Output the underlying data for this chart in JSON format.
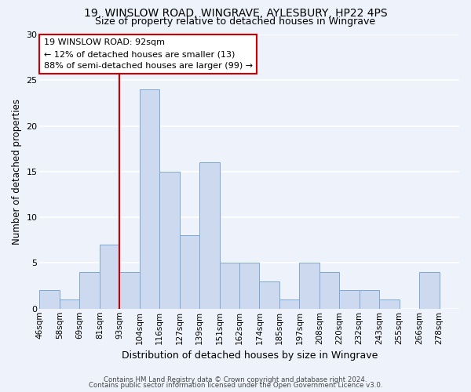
{
  "title1": "19, WINSLOW ROAD, WINGRAVE, AYLESBURY, HP22 4PS",
  "title2": "Size of property relative to detached houses in Wingrave",
  "xlabel": "Distribution of detached houses by size in Wingrave",
  "ylabel": "Number of detached properties",
  "bin_labels": [
    "46sqm",
    "58sqm",
    "69sqm",
    "81sqm",
    "93sqm",
    "104sqm",
    "116sqm",
    "127sqm",
    "139sqm",
    "151sqm",
    "162sqm",
    "174sqm",
    "185sqm",
    "197sqm",
    "208sqm",
    "220sqm",
    "232sqm",
    "243sqm",
    "255sqm",
    "266sqm",
    "278sqm"
  ],
  "bar_heights": [
    2,
    1,
    4,
    7,
    4,
    24,
    15,
    8,
    16,
    5,
    5,
    3,
    1,
    5,
    4,
    2,
    2,
    1,
    0,
    4,
    0
  ],
  "bar_color": "#ccd9ee",
  "bar_edge_color": "#7aa8d4",
  "subject_line_index": 4,
  "subject_line_color": "#cc0000",
  "annotation_text": "19 WINSLOW ROAD: 92sqm\n← 12% of detached houses are smaller (13)\n88% of semi-detached houses are larger (99) →",
  "annotation_box_edge": "#cc0000",
  "ylim": [
    0,
    30
  ],
  "yticks": [
    0,
    5,
    10,
    15,
    20,
    25,
    30
  ],
  "footer1": "Contains HM Land Registry data © Crown copyright and database right 2024.",
  "footer2": "Contains public sector information licensed under the Open Government Licence v3.0.",
  "bg_color": "#eef2fb",
  "plot_bg_color": "#eef2fb",
  "grid_color": "#ffffff",
  "title1_fontsize": 10,
  "title2_fontsize": 9,
  "ylabel_fontsize": 8.5,
  "xlabel_fontsize": 9,
  "tick_fontsize": 7.5
}
